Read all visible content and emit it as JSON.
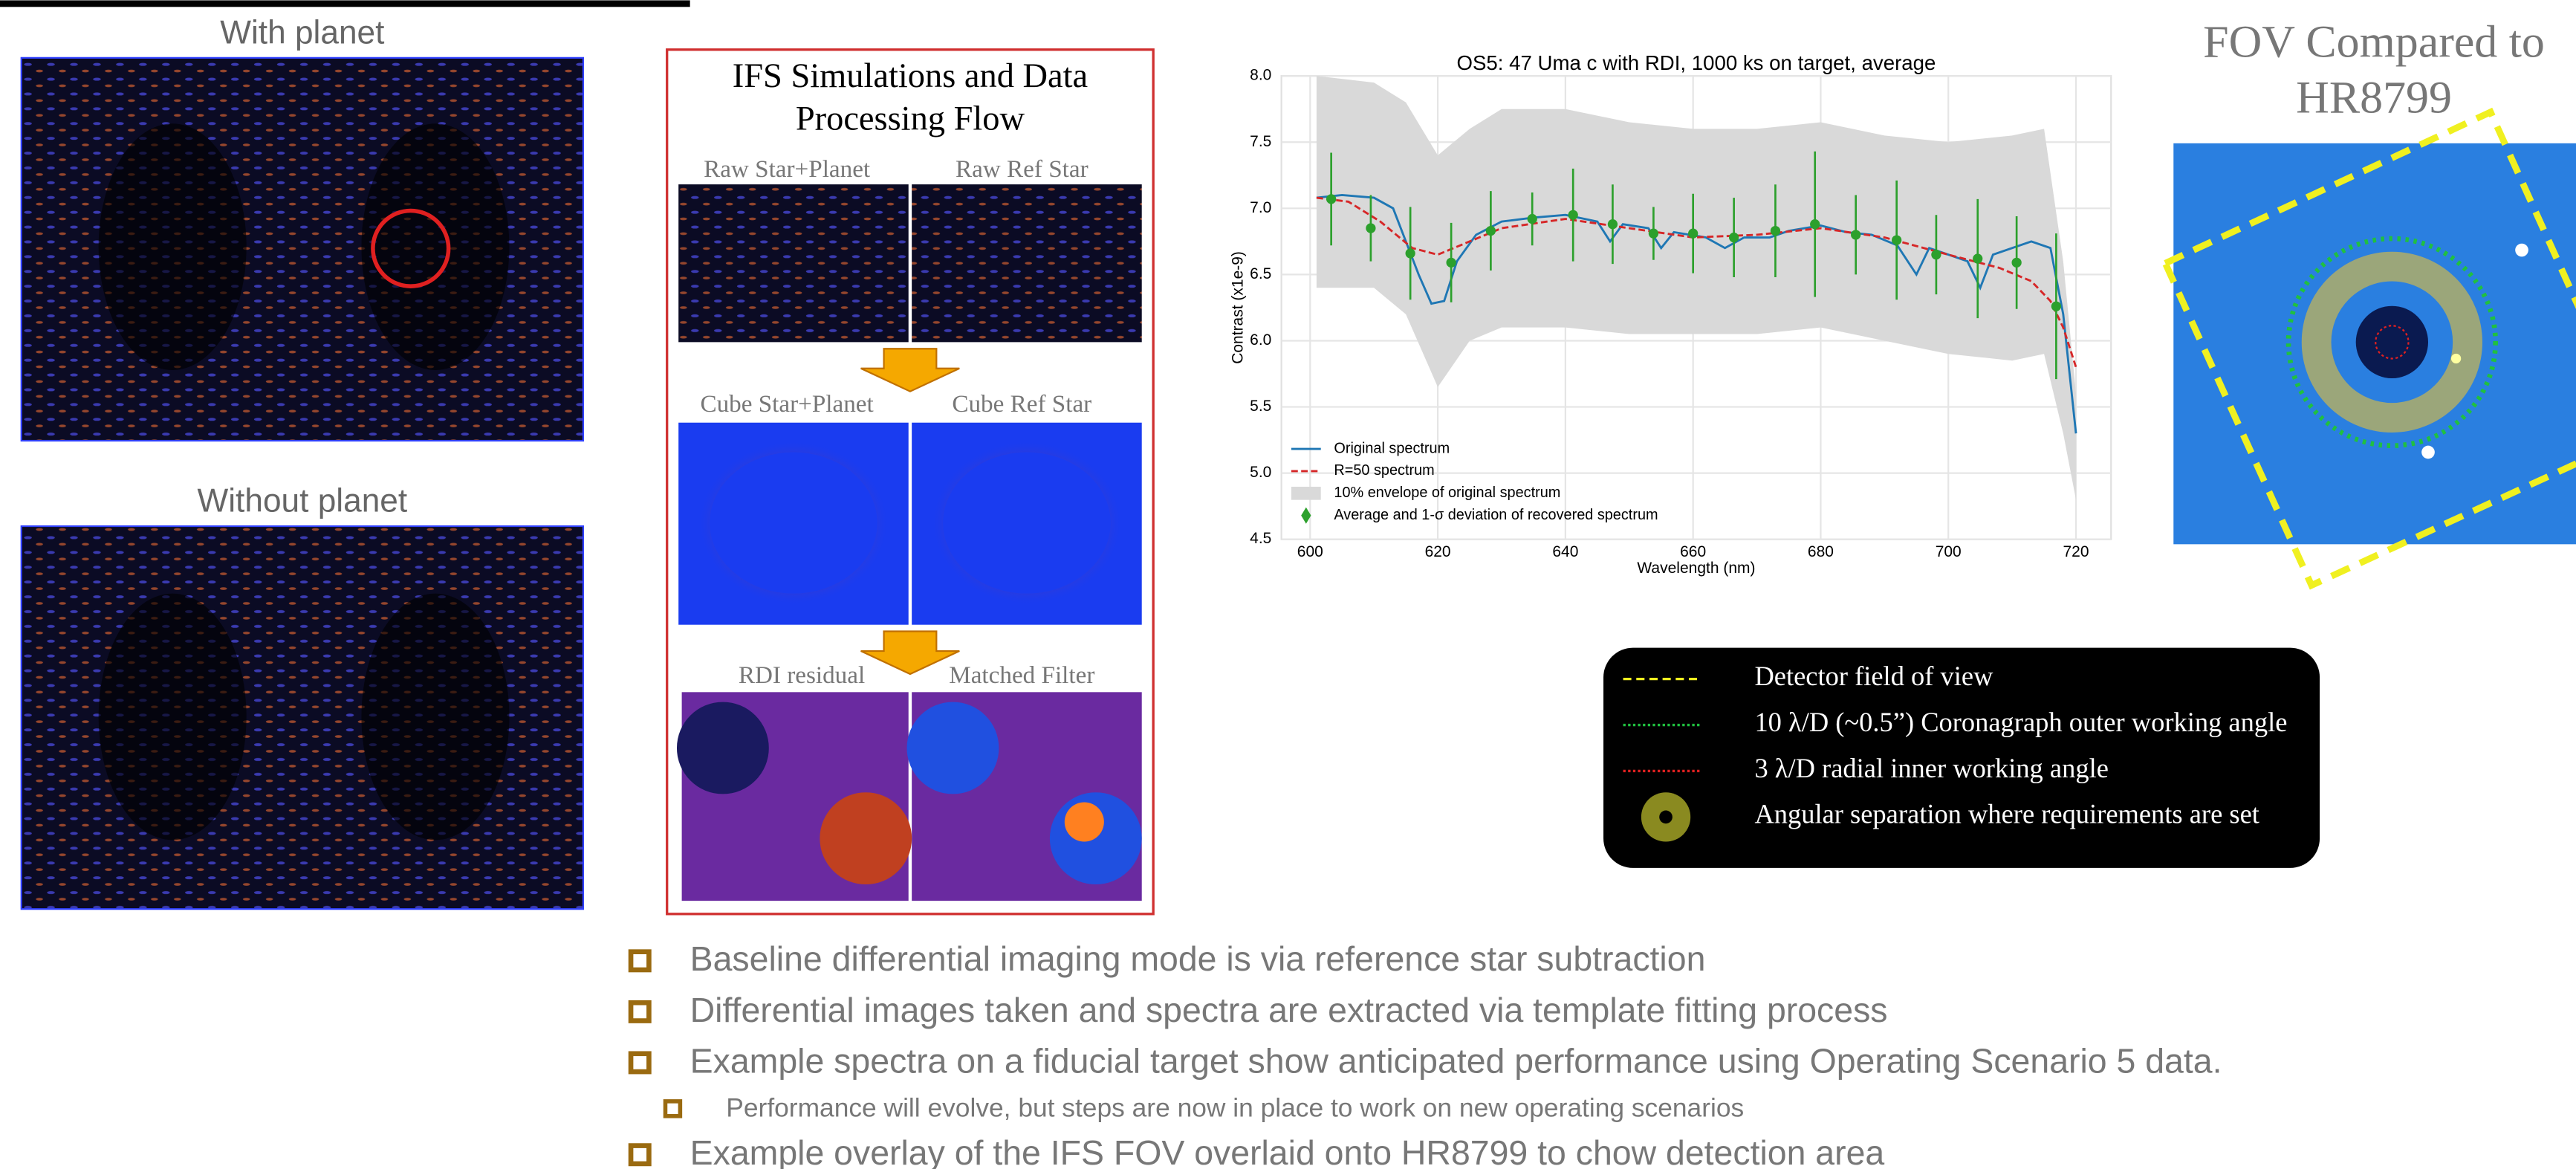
{
  "left_panels": {
    "with_label": "With planet",
    "without_label": "Without planet"
  },
  "ifs_panel": {
    "title": [
      "IFS Simulations and Data",
      "Processing Flow"
    ],
    "labels": [
      "Raw Star+Planet",
      "Raw Ref Star",
      "Cube Star+Planet",
      "Cube Ref Star",
      "RDI residual",
      "Matched Filter"
    ]
  },
  "fov": {
    "title": [
      "FOV Compared to",
      "HR8799"
    ],
    "legend": [
      "Detector field of view",
      "10 λ/D (~0.5”) Coronagraph outer working angle",
      "3 λ/D radial inner working angle",
      "Angular separation where requirements are set"
    ]
  },
  "bullets": [
    "Baseline differential imaging mode is via reference star subtraction",
    "Differential images taken and spectra are extracted via template fitting process",
    "Example spectra on a fiducial target show anticipated performance using Operating Scenario 5 data.",
    "Performance will evolve, but steps are now in place to work on new operating scenarios",
    "Example overlay of the IFS FOV overlaid onto HR8799 to chow detection area"
  ],
  "chart_data": {
    "type": "line",
    "title": "OS5: 47 Uma c with RDI, 1000 ks on target, average",
    "xlabel": "Wavelength (nm)",
    "ylabel": "Contrast (x1e-9)",
    "xlim": [
      595.5,
      725.5
    ],
    "ylim": [
      4.5,
      8.0
    ],
    "xticks": [
      600,
      620,
      640,
      660,
      680,
      700,
      720
    ],
    "yticks": [
      4.5,
      {
        "value": 5,
        "label": "5.0"
      },
      5.5,
      {
        "value": 6,
        "label": "6.0"
      },
      6.5,
      {
        "value": 7,
        "label": "7.0"
      },
      7.5,
      {
        "value": 8,
        "label": "8.0"
      }
    ],
    "grid": true,
    "legend": "lower left",
    "series": [
      {
        "name": "10% envelope of original spectrum",
        "color": "#d9d9d9",
        "type": "area",
        "x": [
          601,
          610,
          615,
          620,
          625,
          630,
          640,
          650,
          660,
          670,
          680,
          690,
          700,
          710,
          715,
          718,
          720
        ],
        "upper": [
          8.0,
          7.95,
          7.8,
          7.4,
          7.6,
          7.75,
          7.75,
          7.65,
          7.6,
          7.6,
          7.65,
          7.55,
          7.5,
          7.55,
          7.6,
          6.6,
          5.6
        ],
        "lower": [
          6.4,
          6.4,
          6.2,
          5.65,
          6.0,
          6.1,
          6.1,
          6.05,
          6.05,
          6.05,
          6.1,
          6.0,
          5.9,
          5.85,
          5.9,
          5.3,
          4.8
        ]
      },
      {
        "name": "Original spectrum",
        "color": "#1f77b4",
        "type": "line",
        "x": [
          601,
          605,
          610,
          613,
          615,
          617,
          619,
          621,
          623,
          626,
          630,
          635,
          640,
          645,
          647,
          649,
          653,
          655,
          657,
          662,
          665,
          668,
          672,
          675,
          680,
          684,
          688,
          692,
          695,
          697,
          700,
          703,
          705,
          707,
          710,
          713,
          716,
          718,
          720
        ],
        "values": [
          7.08,
          7.1,
          7.08,
          7.0,
          6.75,
          6.5,
          6.28,
          6.3,
          6.6,
          6.8,
          6.9,
          6.93,
          6.95,
          6.9,
          6.75,
          6.88,
          6.85,
          6.7,
          6.82,
          6.78,
          6.7,
          6.78,
          6.78,
          6.83,
          6.87,
          6.82,
          6.8,
          6.72,
          6.5,
          6.7,
          6.65,
          6.6,
          6.4,
          6.65,
          6.7,
          6.75,
          6.7,
          6.2,
          5.3
        ]
      },
      {
        "name": "R=50 spectrum",
        "color": "#d62728",
        "type": "dashed",
        "x": [
          601,
          606,
          611,
          616,
          620,
          625,
          630,
          640,
          650,
          660,
          670,
          680,
          690,
          700,
          708,
          713,
          716,
          718,
          720
        ],
        "values": [
          7.08,
          7.05,
          6.9,
          6.7,
          6.65,
          6.75,
          6.85,
          6.92,
          6.85,
          6.78,
          6.8,
          6.85,
          6.78,
          6.65,
          6.55,
          6.45,
          6.3,
          6.1,
          5.8
        ]
      },
      {
        "name": "Average and 1-σ deviation of recovered spectrum",
        "color": "#2ca02c",
        "type": "errorbar",
        "x": [
          603.3,
          609.5,
          615.7,
          622.1,
          628.3,
          634.8,
          641.2,
          647.4,
          653.8,
          660,
          666.4,
          672.9,
          679.1,
          685.5,
          691.9,
          698.1,
          704.6,
          710.7,
          716.9
        ],
        "values": [
          7.07,
          6.85,
          6.66,
          6.59,
          6.83,
          6.92,
          6.95,
          6.88,
          6.81,
          6.81,
          6.78,
          6.83,
          6.88,
          6.8,
          6.76,
          6.65,
          6.62,
          6.59,
          6.26
        ],
        "errors": [
          0.35,
          0.25,
          0.35,
          0.3,
          0.3,
          0.2,
          0.35,
          0.3,
          0.2,
          0.3,
          0.3,
          0.35,
          0.55,
          0.3,
          0.45,
          0.3,
          0.45,
          0.35,
          0.55
        ]
      }
    ]
  }
}
